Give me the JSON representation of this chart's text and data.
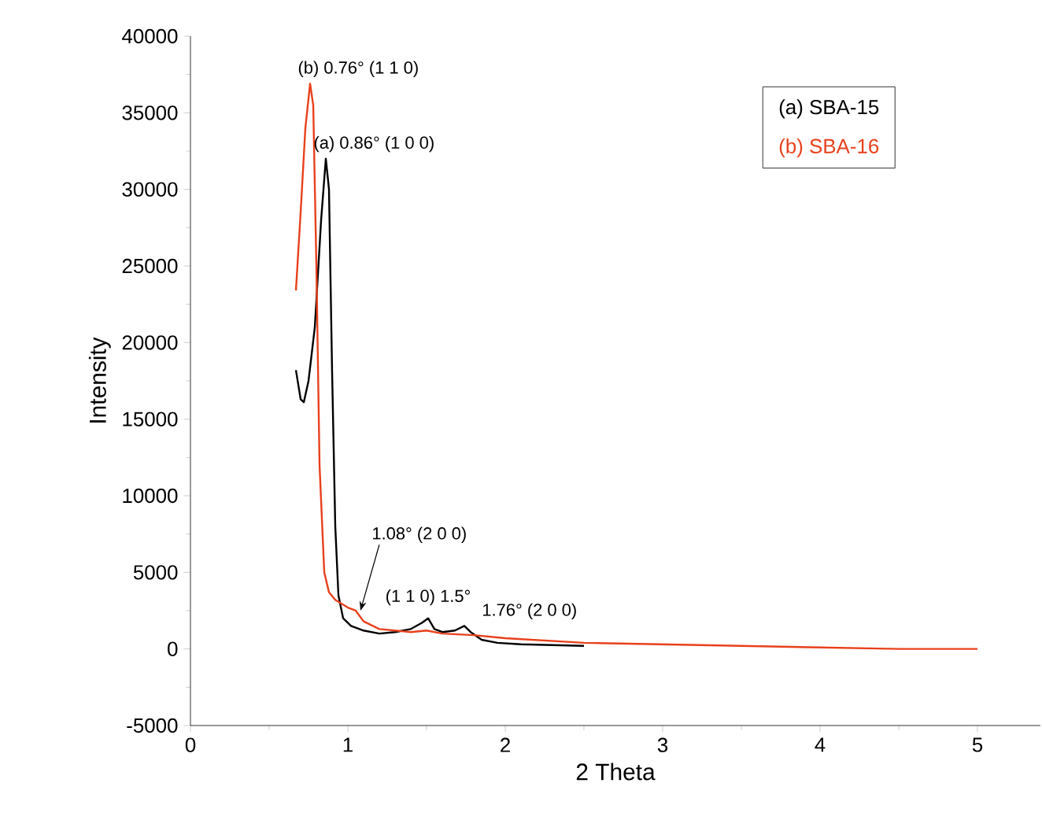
{
  "chart_data": {
    "type": "line",
    "xlabel": "2 Theta",
    "ylabel": "Intensity",
    "xlim": [
      0,
      5.4
    ],
    "xticks": [
      0,
      1,
      2,
      3,
      4,
      5
    ],
    "ylim": [
      -5000,
      40000
    ],
    "yticks": [
      -5000,
      0,
      5000,
      10000,
      15000,
      20000,
      25000,
      30000,
      35000,
      40000
    ],
    "grid": false,
    "legend": "top right",
    "marker": "none",
    "line_style": "solid",
    "series": [
      {
        "name": "(a) SBA-15",
        "color": "#000000",
        "x": [
          0.67,
          0.7,
          0.72,
          0.75,
          0.79,
          0.83,
          0.86,
          0.88,
          0.9,
          0.92,
          0.94,
          0.97,
          1.02,
          1.1,
          1.2,
          1.3,
          1.4,
          1.47,
          1.51,
          1.55,
          1.6,
          1.68,
          1.74,
          1.78,
          1.85,
          1.95,
          2.1,
          2.5
        ],
        "values": [
          18200,
          16300,
          16100,
          17500,
          21000,
          28000,
          32000,
          30000,
          18000,
          8000,
          3500,
          2000,
          1500,
          1200,
          1000,
          1100,
          1300,
          1700,
          2000,
          1300,
          1100,
          1200,
          1500,
          1100,
          600,
          400,
          300,
          200
        ]
      },
      {
        "name": "(b) SBA-16",
        "color": "#e8401c",
        "x": [
          0.67,
          0.7,
          0.73,
          0.76,
          0.78,
          0.8,
          0.82,
          0.85,
          0.88,
          0.92,
          1.0,
          1.05,
          1.1,
          1.2,
          1.4,
          1.5,
          1.6,
          1.8,
          1.9,
          2.0,
          2.5,
          3,
          3.5,
          4,
          4.5,
          5
        ],
        "values": [
          23400,
          28500,
          34000,
          36900,
          35500,
          25000,
          12000,
          5000,
          3700,
          3200,
          2700,
          2500,
          1800,
          1300,
          1100,
          1200,
          1000,
          900,
          800,
          700,
          400,
          300,
          200,
          100,
          0,
          0
        ]
      }
    ],
    "annotations": [
      {
        "text": "(b)   0.76° (1 1 0)",
        "x": 0.76,
        "y": 36900
      },
      {
        "text": "(a)   0.86° (1 0 0)",
        "x": 0.86,
        "y": 32000
      },
      {
        "text": "1.08°  (2 0 0)",
        "x": 1.08,
        "y": 2500
      },
      {
        "text": "(1 1 0) 1.5°",
        "x": 1.51,
        "y": 2000
      },
      {
        "text": "1.76° (2 0 0)",
        "x": 1.76,
        "y": 1500
      }
    ]
  }
}
